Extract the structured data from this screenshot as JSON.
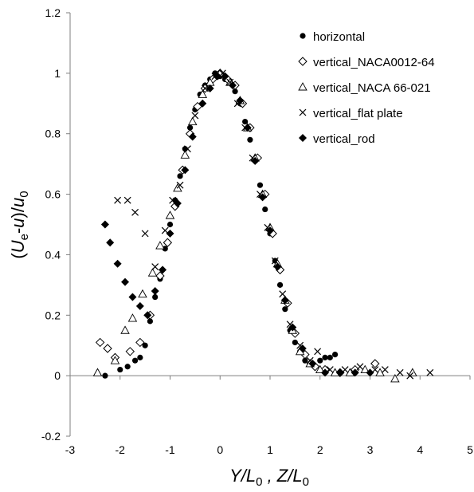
{
  "chart_data": {
    "type": "scatter",
    "xlabel": "Y/L0 , Z/L0",
    "ylabel": "(Ue-u)/u0",
    "xlim": [
      -3,
      5
    ],
    "ylim": [
      -0.2,
      1.2
    ],
    "x_ticks": [
      "-3",
      "-2",
      "-1",
      "0",
      "1",
      "2",
      "3",
      "4",
      "5"
    ],
    "y_ticks": [
      "-0.2",
      "0",
      "0.2",
      "0.4",
      "0.6",
      "0.8",
      "1",
      "1.2"
    ],
    "grid": false,
    "legend_position": "top-right",
    "series": [
      {
        "name": "horizontal",
        "marker": "filled-circle",
        "points": [
          [
            -2.3,
            0.0
          ],
          [
            -2.0,
            0.02
          ],
          [
            -1.85,
            0.03
          ],
          [
            -1.7,
            0.05
          ],
          [
            -1.6,
            0.06
          ],
          [
            -1.5,
            0.1
          ],
          [
            -1.4,
            0.18
          ],
          [
            -1.3,
            0.26
          ],
          [
            -1.2,
            0.32
          ],
          [
            -1.1,
            0.42
          ],
          [
            -1.0,
            0.5
          ],
          [
            -0.9,
            0.58
          ],
          [
            -0.8,
            0.66
          ],
          [
            -0.7,
            0.75
          ],
          [
            -0.6,
            0.82
          ],
          [
            -0.5,
            0.88
          ],
          [
            -0.4,
            0.93
          ],
          [
            -0.3,
            0.96
          ],
          [
            -0.2,
            0.98
          ],
          [
            -0.1,
            1.0
          ],
          [
            0.0,
            0.99
          ],
          [
            0.1,
            0.98
          ],
          [
            0.2,
            0.97
          ],
          [
            0.3,
            0.94
          ],
          [
            0.4,
            0.9
          ],
          [
            0.5,
            0.84
          ],
          [
            0.6,
            0.78
          ],
          [
            0.7,
            0.71
          ],
          [
            0.8,
            0.63
          ],
          [
            0.9,
            0.55
          ],
          [
            1.0,
            0.47
          ],
          [
            1.1,
            0.38
          ],
          [
            1.2,
            0.3
          ],
          [
            1.3,
            0.22
          ],
          [
            1.4,
            0.15
          ],
          [
            1.5,
            0.11
          ],
          [
            1.6,
            0.08
          ],
          [
            1.7,
            0.05
          ],
          [
            1.8,
            0.04
          ],
          [
            1.9,
            0.03
          ],
          [
            2.0,
            0.05
          ],
          [
            2.1,
            0.06
          ],
          [
            2.2,
            0.06
          ],
          [
            2.3,
            0.07
          ]
        ]
      },
      {
        "name": "vertical_NACA0012-64",
        "marker": "open-diamond",
        "points": [
          [
            -2.4,
            0.11
          ],
          [
            -2.25,
            0.09
          ],
          [
            -2.1,
            0.06
          ],
          [
            -1.8,
            0.08
          ],
          [
            -1.6,
            0.11
          ],
          [
            -1.4,
            0.2
          ],
          [
            -1.2,
            0.33
          ],
          [
            -1.05,
            0.44
          ],
          [
            -0.9,
            0.56
          ],
          [
            -0.75,
            0.68
          ],
          [
            -0.6,
            0.8
          ],
          [
            -0.45,
            0.89
          ],
          [
            -0.3,
            0.95
          ],
          [
            -0.15,
            0.98
          ],
          [
            0.0,
            1.0
          ],
          [
            0.15,
            0.98
          ],
          [
            0.3,
            0.96
          ],
          [
            0.45,
            0.9
          ],
          [
            0.6,
            0.82
          ],
          [
            0.75,
            0.72
          ],
          [
            0.9,
            0.6
          ],
          [
            1.05,
            0.47
          ],
          [
            1.2,
            0.35
          ],
          [
            1.35,
            0.24
          ],
          [
            1.5,
            0.14
          ],
          [
            1.7,
            0.07
          ],
          [
            1.9,
            0.03
          ],
          [
            2.1,
            0.02
          ],
          [
            2.4,
            0.01
          ],
          [
            2.7,
            0.02
          ],
          [
            3.1,
            0.04
          ]
        ]
      },
      {
        "name": "vertical_NACA 66-021",
        "marker": "open-triangle",
        "points": [
          [
            -2.45,
            0.01
          ],
          [
            -2.1,
            0.05
          ],
          [
            -1.9,
            0.15
          ],
          [
            -1.75,
            0.19
          ],
          [
            -1.55,
            0.27
          ],
          [
            -1.35,
            0.34
          ],
          [
            -1.2,
            0.43
          ],
          [
            -1.0,
            0.53
          ],
          [
            -0.85,
            0.62
          ],
          [
            -0.7,
            0.73
          ],
          [
            -0.55,
            0.84
          ],
          [
            -0.35,
            0.93
          ],
          [
            -0.2,
            0.97
          ],
          [
            0.0,
            1.0
          ],
          [
            0.2,
            0.97
          ],
          [
            0.4,
            0.91
          ],
          [
            0.55,
            0.82
          ],
          [
            0.7,
            0.72
          ],
          [
            0.85,
            0.6
          ],
          [
            1.0,
            0.49
          ],
          [
            1.15,
            0.37
          ],
          [
            1.3,
            0.25
          ],
          [
            1.45,
            0.15
          ],
          [
            1.6,
            0.08
          ],
          [
            1.8,
            0.04
          ],
          [
            2.0,
            0.02
          ],
          [
            2.3,
            0.01
          ],
          [
            2.6,
            0.01
          ],
          [
            2.9,
            0.02
          ],
          [
            3.2,
            0.01
          ],
          [
            3.5,
            -0.01
          ],
          [
            3.85,
            0.01
          ]
        ]
      },
      {
        "name": "vertical_flat plate",
        "marker": "x",
        "points": [
          [
            -2.05,
            0.58
          ],
          [
            -1.85,
            0.58
          ],
          [
            -1.7,
            0.54
          ],
          [
            -1.5,
            0.47
          ],
          [
            -1.3,
            0.36
          ],
          [
            -1.1,
            0.48
          ],
          [
            -0.95,
            0.58
          ],
          [
            -0.8,
            0.63
          ],
          [
            -0.65,
            0.75
          ],
          [
            -0.5,
            0.86
          ],
          [
            -0.3,
            0.95
          ],
          [
            -0.1,
            0.99
          ],
          [
            0.05,
            1.0
          ],
          [
            0.2,
            0.97
          ],
          [
            0.35,
            0.9
          ],
          [
            0.5,
            0.82
          ],
          [
            0.65,
            0.72
          ],
          [
            0.8,
            0.6
          ],
          [
            0.95,
            0.49
          ],
          [
            1.1,
            0.38
          ],
          [
            1.25,
            0.27
          ],
          [
            1.4,
            0.17
          ],
          [
            1.6,
            0.1
          ],
          [
            1.8,
            0.05
          ],
          [
            1.95,
            0.08
          ],
          [
            2.2,
            0.02
          ],
          [
            2.5,
            0.02
          ],
          [
            2.8,
            0.03
          ],
          [
            3.1,
            0.02
          ],
          [
            3.3,
            0.02
          ],
          [
            3.6,
            0.01
          ],
          [
            3.8,
            0.0
          ],
          [
            4.2,
            0.01
          ]
        ]
      },
      {
        "name": "vertical_rod",
        "marker": "filled-diamond",
        "points": [
          [
            -2.3,
            0.5
          ],
          [
            -2.2,
            0.44
          ],
          [
            -2.05,
            0.37
          ],
          [
            -1.9,
            0.31
          ],
          [
            -1.75,
            0.26
          ],
          [
            -1.6,
            0.23
          ],
          [
            -1.45,
            0.2
          ],
          [
            -1.3,
            0.28
          ],
          [
            -1.15,
            0.35
          ],
          [
            -1.0,
            0.47
          ],
          [
            -0.85,
            0.57
          ],
          [
            -0.7,
            0.68
          ],
          [
            -0.55,
            0.79
          ],
          [
            -0.35,
            0.9
          ],
          [
            -0.2,
            0.95
          ],
          [
            -0.05,
            0.99
          ],
          [
            0.1,
            0.99
          ],
          [
            0.25,
            0.96
          ],
          [
            0.4,
            0.91
          ],
          [
            0.55,
            0.82
          ],
          [
            0.7,
            0.71
          ],
          [
            0.85,
            0.59
          ],
          [
            1.0,
            0.48
          ],
          [
            1.15,
            0.36
          ],
          [
            1.3,
            0.25
          ],
          [
            1.45,
            0.16
          ],
          [
            1.65,
            0.09
          ],
          [
            1.85,
            0.04
          ],
          [
            2.1,
            0.01
          ],
          [
            2.4,
            0.01
          ],
          [
            2.7,
            0.01
          ],
          [
            3.0,
            0.01
          ]
        ]
      }
    ]
  }
}
